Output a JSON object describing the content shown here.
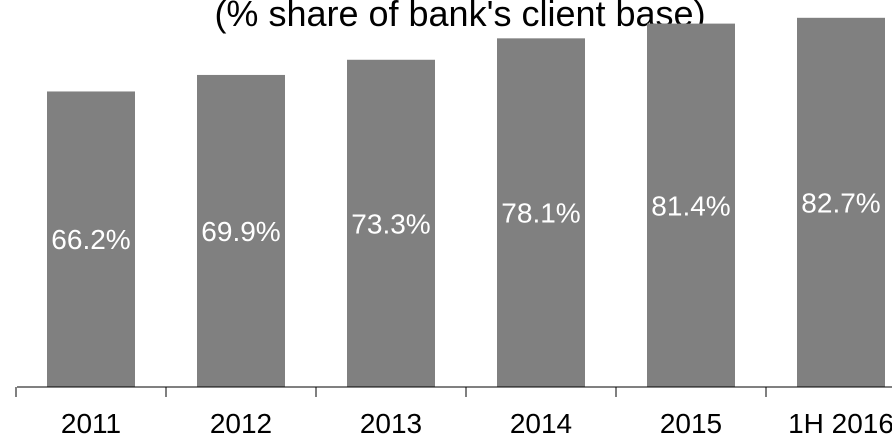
{
  "chart_data": {
    "type": "bar",
    "title": "(% share of bank's client base)",
    "categories": [
      "2011",
      "2012",
      "2013",
      "2014",
      "2015",
      "1H 2016"
    ],
    "values": [
      66.2,
      69.9,
      73.3,
      78.1,
      81.4,
      82.7
    ],
    "data_labels": [
      "66.2%",
      "69.9%",
      "73.3%",
      "78.1%",
      "81.4%",
      "82.7%"
    ],
    "xlabel": "",
    "ylabel": "",
    "ylim": [
      0,
      84
    ],
    "grid": false,
    "legend": "none",
    "colors": {
      "bar": "#808080",
      "data_label": "#ffffff",
      "axis": "#000000",
      "text": "#000000"
    }
  }
}
